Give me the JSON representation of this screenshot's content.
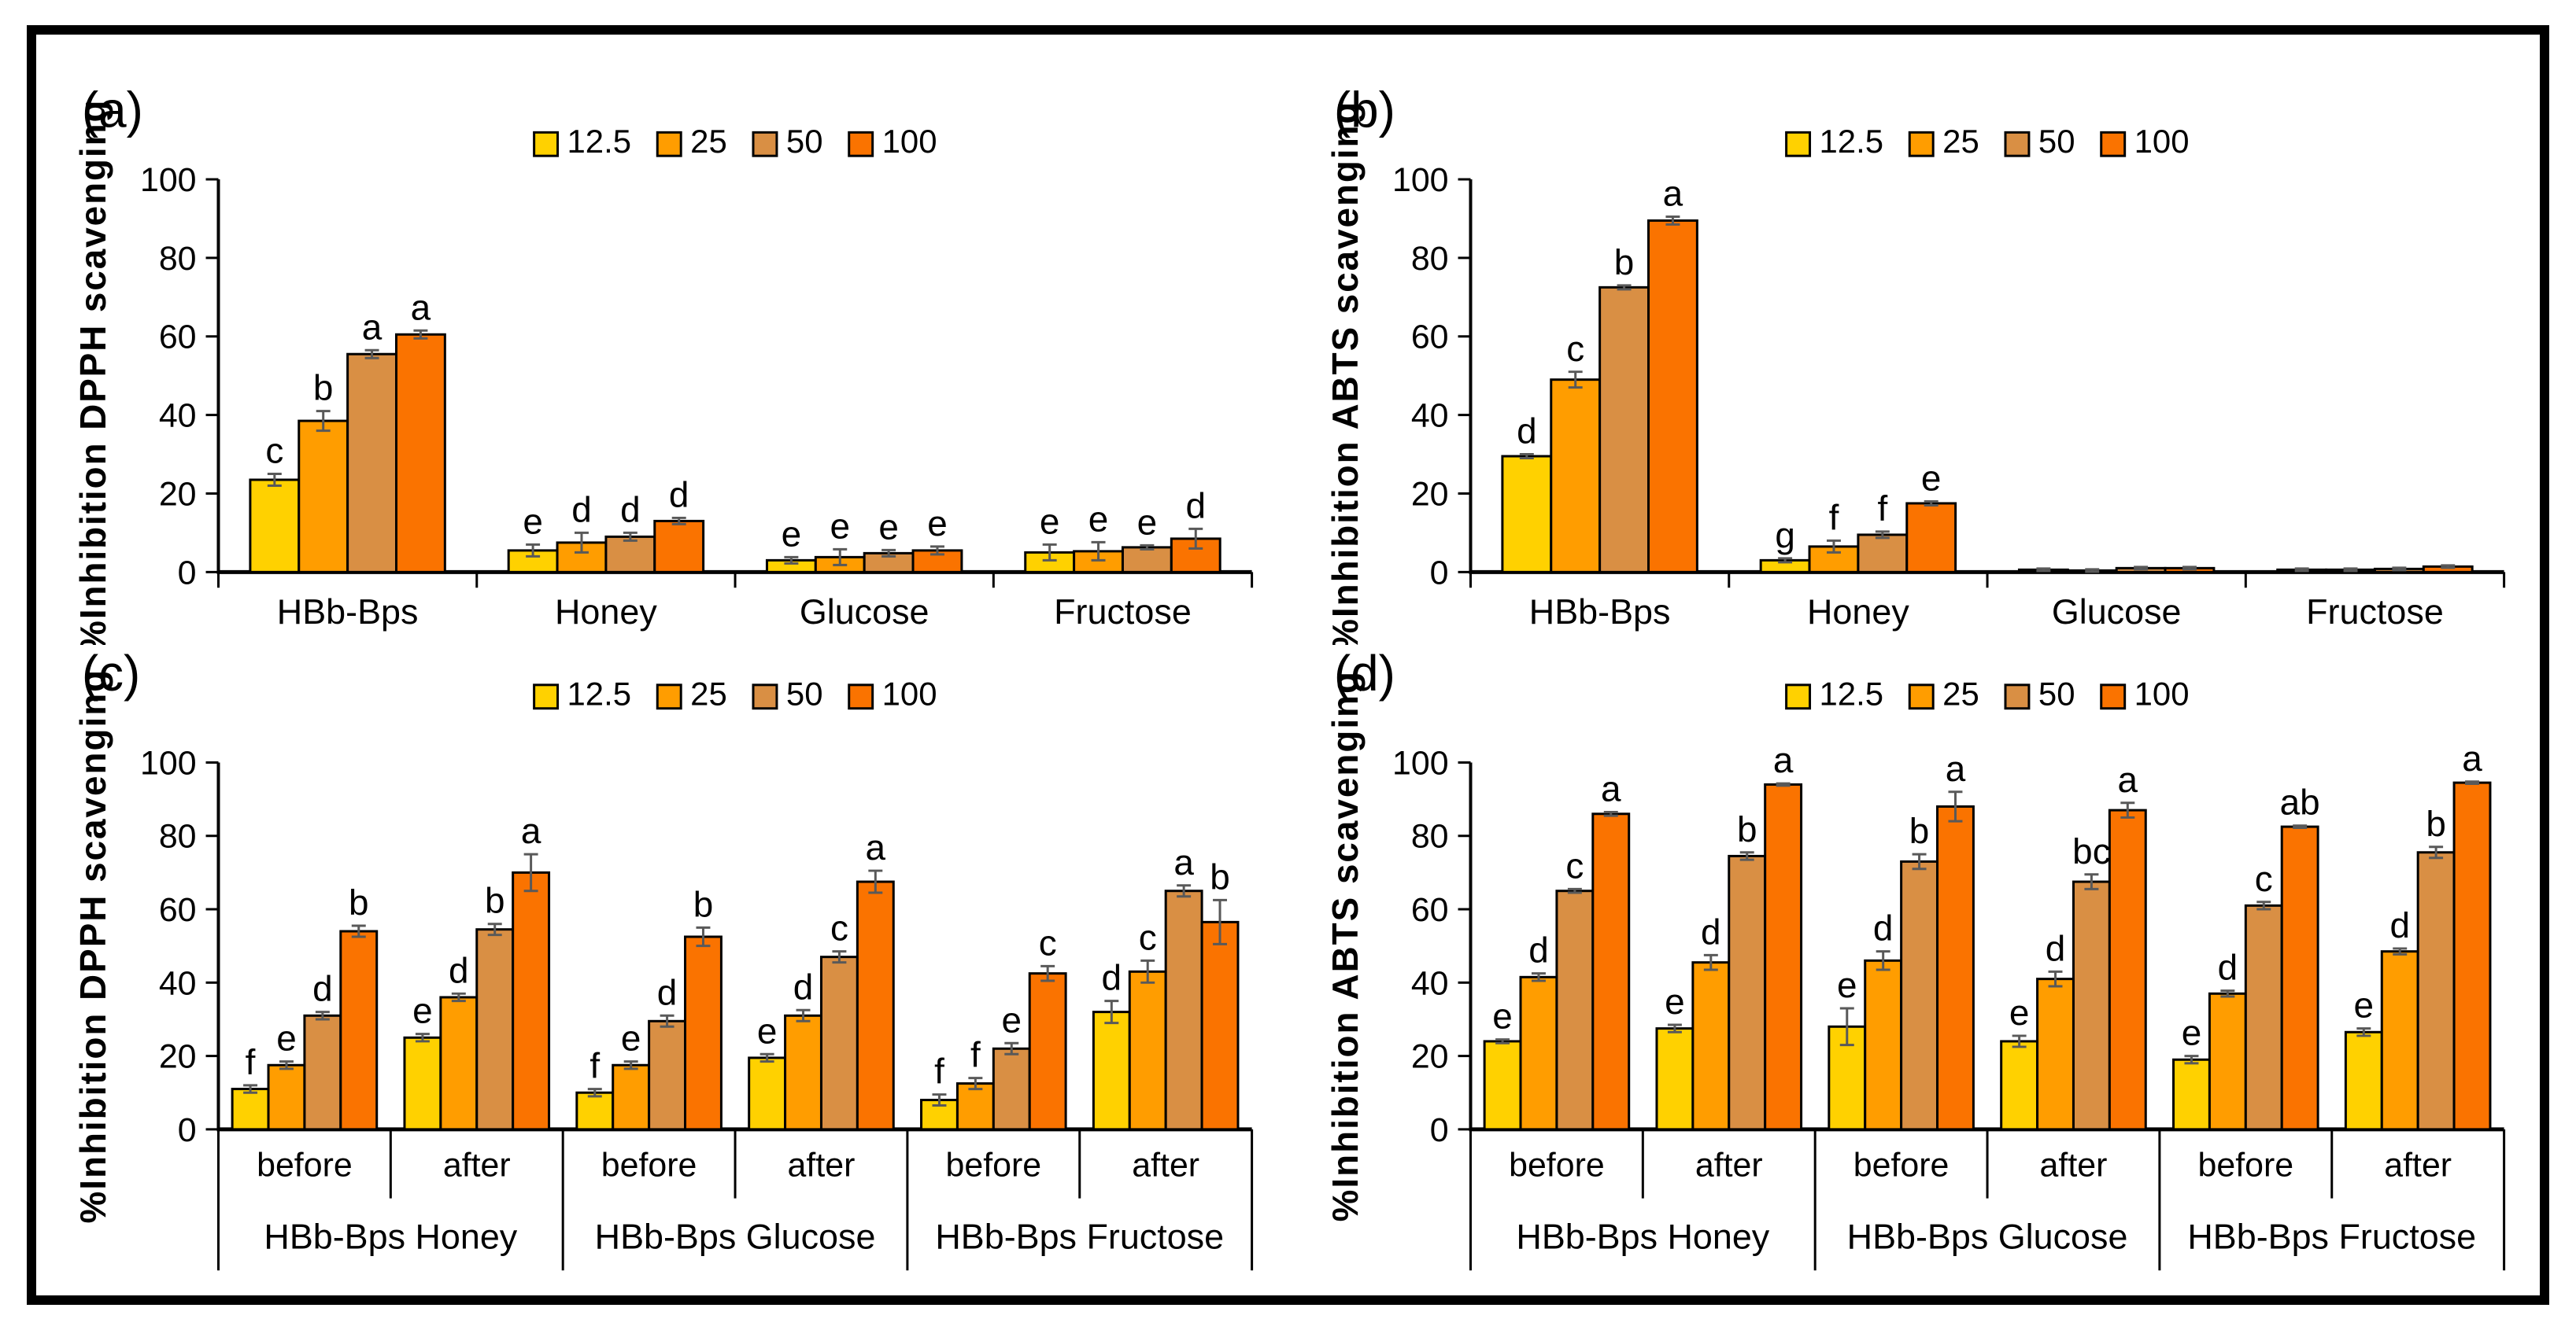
{
  "figure": {
    "series_labels": [
      "12.5",
      "25",
      "50",
      "100"
    ],
    "series_colors": [
      "#FFD100",
      "#FF9D00",
      "#D98F44",
      "#FA7300"
    ],
    "error_bar_color": "#595959",
    "axis_color": "#000000"
  },
  "chart_data": [
    {
      "id": "a",
      "type": "bar",
      "panel_label": "(a)",
      "ylabel": "%Inhibition DPPH scavenging",
      "ylim": [
        0,
        100
      ],
      "yticks": [
        0,
        20,
        40,
        60,
        80,
        100
      ],
      "grid": false,
      "legend": [
        "12.5",
        "25",
        "50",
        "100"
      ],
      "legend_position": "top-center",
      "categories": [
        "HBb-Bps",
        "Honey",
        "Glucose",
        "Fructose"
      ],
      "category_groups": null,
      "series": [
        {
          "name": "12.5",
          "values": [
            23.5,
            5.5,
            3.0,
            5.0
          ],
          "errors": [
            1.5,
            1.5,
            0.8,
            2.0
          ],
          "letters": [
            "c",
            "e",
            "e",
            "e"
          ]
        },
        {
          "name": "25",
          "values": [
            38.5,
            7.5,
            3.8,
            5.3
          ],
          "errors": [
            2.5,
            2.5,
            2.0,
            2.3
          ],
          "letters": [
            "b",
            "d",
            "e",
            "e"
          ]
        },
        {
          "name": "50",
          "values": [
            55.5,
            9.0,
            4.8,
            6.3
          ],
          "errors": [
            1.0,
            1.0,
            0.8,
            0.5
          ],
          "letters": [
            "a",
            "d",
            "e",
            "e"
          ]
        },
        {
          "name": "100",
          "values": [
            60.5,
            13.0,
            5.5,
            8.5
          ],
          "errors": [
            1.0,
            0.8,
            1.0,
            2.5
          ],
          "letters": [
            "a",
            "d",
            "e",
            "d"
          ]
        }
      ]
    },
    {
      "id": "b",
      "type": "bar",
      "panel_label": "(b)",
      "ylabel": "%Inhibition ABTS scavenging",
      "ylim": [
        0,
        100
      ],
      "yticks": [
        0,
        20,
        40,
        60,
        80,
        100
      ],
      "grid": false,
      "legend": [
        "12.5",
        "25",
        "50",
        "100"
      ],
      "legend_position": "top-center",
      "categories": [
        "HBb-Bps",
        "Honey",
        "Glucose",
        "Fructose"
      ],
      "category_groups": null,
      "series": [
        {
          "name": "12.5",
          "values": [
            29.5,
            3.0,
            0.6,
            0.6
          ],
          "errors": [
            0.5,
            0.5,
            0.3,
            0.3
          ],
          "letters": [
            "d",
            "g",
            "",
            ""
          ]
        },
        {
          "name": "25",
          "values": [
            49.0,
            6.5,
            0.4,
            0.6
          ],
          "errors": [
            2.0,
            1.5,
            0.3,
            0.3
          ],
          "letters": [
            "c",
            "f",
            "",
            ""
          ]
        },
        {
          "name": "50",
          "values": [
            72.5,
            9.5,
            1.0,
            0.8
          ],
          "errors": [
            0.5,
            0.8,
            0.3,
            0.3
          ],
          "letters": [
            "b",
            "f",
            "",
            ""
          ]
        },
        {
          "name": "100",
          "values": [
            89.5,
            17.5,
            1.0,
            1.4
          ],
          "errors": [
            1.0,
            0.5,
            0.3,
            0.3
          ],
          "letters": [
            "a",
            "e",
            "",
            ""
          ]
        }
      ]
    },
    {
      "id": "c",
      "type": "bar",
      "panel_label": "(c)",
      "ylabel": "%Inhibition DPPH scavenging",
      "ylim": [
        0,
        100
      ],
      "yticks": [
        0,
        20,
        40,
        60,
        80,
        100
      ],
      "grid": false,
      "legend": [
        "12.5",
        "25",
        "50",
        "100"
      ],
      "legend_position": "top-center",
      "categories": [
        "before",
        "after",
        "before",
        "after",
        "before",
        "after"
      ],
      "category_groups": [
        {
          "label": "HBb-Bps Honey",
          "span": 2
        },
        {
          "label": "HBb-Bps Glucose",
          "span": 2
        },
        {
          "label": "HBb-Bps Fructose",
          "span": 2
        }
      ],
      "series": [
        {
          "name": "12.5",
          "values": [
            11.0,
            25.0,
            10.0,
            19.5,
            8.0,
            32.0
          ],
          "errors": [
            1.0,
            1.0,
            1.0,
            1.0,
            1.5,
            3.0
          ],
          "letters": [
            "f",
            "e",
            "f",
            "e",
            "f",
            "d"
          ]
        },
        {
          "name": "25",
          "values": [
            17.5,
            36.0,
            17.5,
            31.0,
            12.5,
            43.0
          ],
          "errors": [
            1.0,
            1.0,
            1.0,
            1.5,
            1.5,
            3.0
          ],
          "letters": [
            "e",
            "d",
            "e",
            "d",
            "f",
            "c"
          ]
        },
        {
          "name": "50",
          "values": [
            31.0,
            54.5,
            29.5,
            47.0,
            22.0,
            65.0
          ],
          "errors": [
            1.0,
            1.5,
            1.5,
            1.5,
            1.5,
            1.5
          ],
          "letters": [
            "d",
            "b",
            "d",
            "c",
            "e",
            "a"
          ]
        },
        {
          "name": "100",
          "values": [
            54.0,
            70.0,
            52.5,
            67.5,
            42.5,
            56.5
          ],
          "errors": [
            1.5,
            5.0,
            2.5,
            3.0,
            2.0,
            6.0
          ],
          "letters": [
            "b",
            "a",
            "b",
            "a",
            "c",
            "b"
          ]
        }
      ]
    },
    {
      "id": "d",
      "type": "bar",
      "panel_label": "(d)",
      "ylabel": "%Inhibition ABTS scavenging",
      "ylim": [
        0,
        100
      ],
      "yticks": [
        0,
        20,
        40,
        60,
        80,
        100
      ],
      "grid": false,
      "legend": [
        "12.5",
        "25",
        "50",
        "100"
      ],
      "legend_position": "top-center",
      "categories": [
        "before",
        "after",
        "before",
        "after",
        "before",
        "after"
      ],
      "category_groups": [
        {
          "label": "HBb-Bps Honey",
          "span": 2
        },
        {
          "label": "HBb-Bps Glucose",
          "span": 2
        },
        {
          "label": "HBb-Bps Fructose",
          "span": 2
        }
      ],
      "series": [
        {
          "name": "12.5",
          "values": [
            24.0,
            27.5,
            28.0,
            24.0,
            19.0,
            26.5
          ],
          "errors": [
            0.5,
            1.0,
            5.0,
            1.5,
            1.0,
            1.0
          ],
          "letters": [
            "e",
            "e",
            "e",
            "e",
            "e",
            "e"
          ]
        },
        {
          "name": "25",
          "values": [
            41.5,
            45.5,
            46.0,
            41.0,
            37.0,
            48.5
          ],
          "errors": [
            1.0,
            2.0,
            2.5,
            2.0,
            0.8,
            0.8
          ],
          "letters": [
            "d",
            "d",
            "d",
            "d",
            "d",
            "d"
          ]
        },
        {
          "name": "50",
          "values": [
            65.0,
            74.5,
            73.0,
            67.5,
            61.0,
            75.5
          ],
          "errors": [
            0.5,
            1.0,
            2.0,
            2.0,
            1.0,
            1.5
          ],
          "letters": [
            "c",
            "b",
            "b",
            "bc",
            "c",
            "b"
          ]
        },
        {
          "name": "100",
          "values": [
            86.0,
            94.0,
            88.0,
            87.0,
            82.5,
            94.5
          ],
          "errors": [
            0.5,
            0.3,
            4.0,
            2.0,
            0.3,
            0.3
          ],
          "letters": [
            "a",
            "a",
            "a",
            "a",
            "ab",
            "a"
          ]
        }
      ]
    }
  ]
}
